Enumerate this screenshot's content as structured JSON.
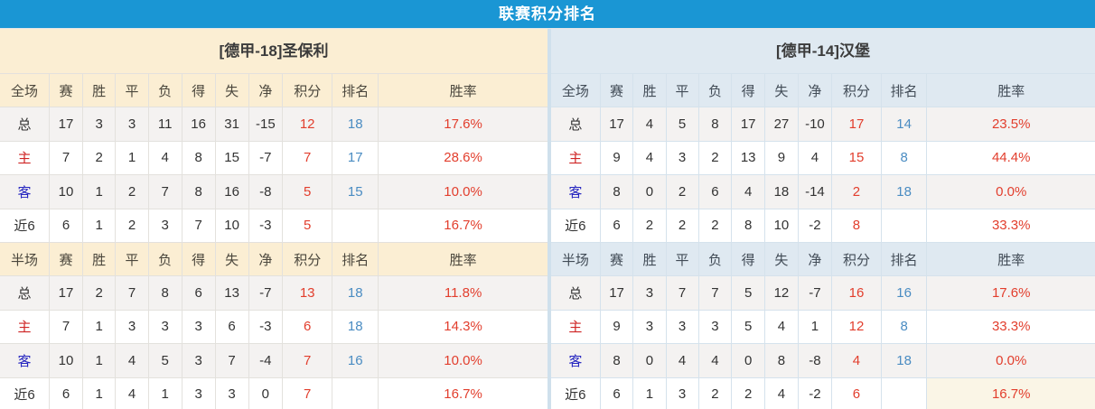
{
  "title": "联赛积分排名",
  "colors": {
    "bar_blue": "#1a96d4",
    "left_header_bg": "#fbeed3",
    "right_header_bg": "#dfe9f1",
    "value_red": "#e23e2d",
    "rank_blue": "#4a8cc2",
    "home_label_red": "#cf2525",
    "away_label_blue": "#2525c0",
    "stripe_gray": "#f4f2f1"
  },
  "columns": [
    "赛",
    "胜",
    "平",
    "负",
    "得",
    "失",
    "净",
    "积分",
    "排名",
    "胜率"
  ],
  "panels": [
    {
      "team": "[德甲-18]圣保利",
      "tables": [
        {
          "scope": "全场",
          "rows": [
            {
              "label": "总",
              "type": "total",
              "cells": [
                "17",
                "3",
                "3",
                "11",
                "16",
                "31",
                "-15",
                "12",
                "18",
                "17.6%"
              ]
            },
            {
              "label": "主",
              "type": "home",
              "cells": [
                "7",
                "2",
                "1",
                "4",
                "8",
                "15",
                "-7",
                "7",
                "17",
                "28.6%"
              ]
            },
            {
              "label": "客",
              "type": "away",
              "cells": [
                "10",
                "1",
                "2",
                "7",
                "8",
                "16",
                "-8",
                "5",
                "15",
                "10.0%"
              ]
            },
            {
              "label": "近6",
              "type": "recent",
              "cells": [
                "6",
                "1",
                "2",
                "3",
                "7",
                "10",
                "-3",
                "5",
                "",
                "16.7%"
              ]
            }
          ]
        },
        {
          "scope": "半场",
          "rows": [
            {
              "label": "总",
              "type": "total",
              "cells": [
                "17",
                "2",
                "7",
                "8",
                "6",
                "13",
                "-7",
                "13",
                "18",
                "11.8%"
              ]
            },
            {
              "label": "主",
              "type": "home",
              "cells": [
                "7",
                "1",
                "3",
                "3",
                "3",
                "6",
                "-3",
                "6",
                "18",
                "14.3%"
              ]
            },
            {
              "label": "客",
              "type": "away",
              "cells": [
                "10",
                "1",
                "4",
                "5",
                "3",
                "7",
                "-4",
                "7",
                "16",
                "10.0%"
              ]
            },
            {
              "label": "近6",
              "type": "recent",
              "cells": [
                "6",
                "1",
                "4",
                "1",
                "3",
                "3",
                "0",
                "7",
                "",
                "16.7%"
              ]
            }
          ]
        }
      ]
    },
    {
      "team": "[德甲-14]汉堡",
      "tables": [
        {
          "scope": "全场",
          "rows": [
            {
              "label": "总",
              "type": "total",
              "cells": [
                "17",
                "4",
                "5",
                "8",
                "17",
                "27",
                "-10",
                "17",
                "14",
                "23.5%"
              ]
            },
            {
              "label": "主",
              "type": "home",
              "cells": [
                "9",
                "4",
                "3",
                "2",
                "13",
                "9",
                "4",
                "15",
                "8",
                "44.4%"
              ]
            },
            {
              "label": "客",
              "type": "away",
              "cells": [
                "8",
                "0",
                "2",
                "6",
                "4",
                "18",
                "-14",
                "2",
                "18",
                "0.0%"
              ]
            },
            {
              "label": "近6",
              "type": "recent",
              "cells": [
                "6",
                "2",
                "2",
                "2",
                "8",
                "10",
                "-2",
                "8",
                "",
                "33.3%"
              ]
            }
          ]
        },
        {
          "scope": "半场",
          "rows": [
            {
              "label": "总",
              "type": "total",
              "cells": [
                "17",
                "3",
                "7",
                "7",
                "5",
                "12",
                "-7",
                "16",
                "16",
                "17.6%"
              ]
            },
            {
              "label": "主",
              "type": "home",
              "cells": [
                "9",
                "3",
                "3",
                "3",
                "5",
                "4",
                "1",
                "12",
                "8",
                "33.3%"
              ]
            },
            {
              "label": "客",
              "type": "away",
              "cells": [
                "8",
                "0",
                "4",
                "4",
                "0",
                "8",
                "-8",
                "4",
                "18",
                "0.0%"
              ]
            },
            {
              "label": "近6",
              "type": "recent",
              "cells": [
                "6",
                "1",
                "3",
                "2",
                "2",
                "4",
                "-2",
                "6",
                "",
                "16.7%"
              ],
              "highlight_rate": true
            }
          ]
        }
      ]
    }
  ]
}
